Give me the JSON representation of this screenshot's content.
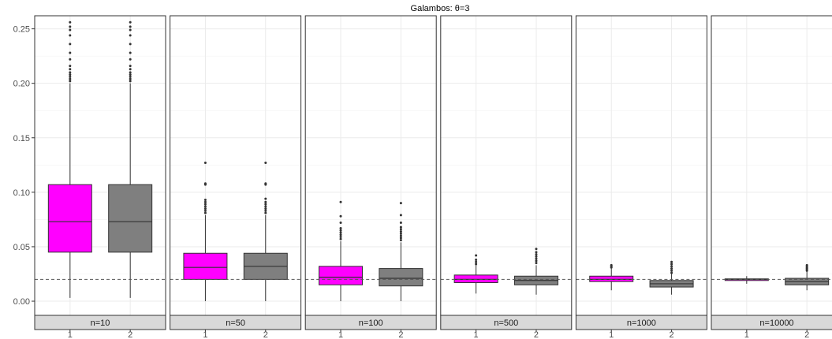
{
  "chart_data": {
    "type": "boxplot",
    "title": "Galambos: θ=3",
    "xlabel": "",
    "ylabel": "",
    "ylim": [
      -0.013,
      0.262
    ],
    "y_ticks": [
      0.0,
      0.05,
      0.1,
      0.15,
      0.2,
      0.25
    ],
    "y_tick_labels": [
      "0.00",
      "0.05",
      "0.10",
      "0.15",
      "0.20",
      "0.25"
    ],
    "categories": [
      "1",
      "2"
    ],
    "reference_line": 0.02,
    "grid": true,
    "colors": {
      "1": "#ff00ff",
      "2": "#7f7f7f"
    },
    "panels": [
      {
        "label": "n=10",
        "boxes": [
          {
            "category": "1",
            "low": 0.003,
            "q1": 0.045,
            "median": 0.073,
            "q3": 0.107,
            "high": 0.2,
            "outliers": [
              0.202,
              0.204,
              0.206,
              0.208,
              0.21,
              0.213,
              0.216,
              0.222,
              0.228,
              0.236,
              0.244,
              0.249,
              0.252,
              0.256
            ]
          },
          {
            "category": "2",
            "low": 0.003,
            "q1": 0.045,
            "median": 0.073,
            "q3": 0.107,
            "high": 0.2,
            "outliers": [
              0.202,
              0.204,
              0.206,
              0.208,
              0.21,
              0.213,
              0.216,
              0.222,
              0.228,
              0.236,
              0.244,
              0.249,
              0.252,
              0.256
            ]
          }
        ]
      },
      {
        "label": "n=50",
        "boxes": [
          {
            "category": "1",
            "low": 0.0,
            "q1": 0.02,
            "median": 0.031,
            "q3": 0.044,
            "high": 0.079,
            "outliers": [
              0.081,
              0.083,
              0.085,
              0.087,
              0.089,
              0.091,
              0.093,
              0.107,
              0.108,
              0.127
            ]
          },
          {
            "category": "2",
            "low": 0.0,
            "q1": 0.02,
            "median": 0.032,
            "q3": 0.044,
            "high": 0.079,
            "outliers": [
              0.081,
              0.083,
              0.085,
              0.087,
              0.089,
              0.091,
              0.094,
              0.107,
              0.108,
              0.127
            ]
          }
        ]
      },
      {
        "label": "n=100",
        "boxes": [
          {
            "category": "1",
            "low": 0.0,
            "q1": 0.015,
            "median": 0.022,
            "q3": 0.032,
            "high": 0.055,
            "outliers": [
              0.057,
              0.059,
              0.061,
              0.063,
              0.065,
              0.067,
              0.072,
              0.078,
              0.091
            ]
          },
          {
            "category": "2",
            "low": 0.0,
            "q1": 0.014,
            "median": 0.021,
            "q3": 0.03,
            "high": 0.054,
            "outliers": [
              0.056,
              0.058,
              0.06,
              0.062,
              0.064,
              0.066,
              0.068,
              0.072,
              0.079,
              0.09
            ]
          }
        ]
      },
      {
        "label": "n=500",
        "boxes": [
          {
            "category": "1",
            "low": 0.007,
            "q1": 0.017,
            "median": 0.02,
            "q3": 0.024,
            "high": 0.033,
            "outliers": [
              0.034,
              0.036,
              0.038,
              0.042
            ]
          },
          {
            "category": "2",
            "low": 0.006,
            "q1": 0.015,
            "median": 0.019,
            "q3": 0.023,
            "high": 0.033,
            "outliers": [
              0.035,
              0.037,
              0.039,
              0.041,
              0.043,
              0.045,
              0.048
            ]
          }
        ]
      },
      {
        "label": "n=1000",
        "boxes": [
          {
            "category": "1",
            "low": 0.01,
            "q1": 0.018,
            "median": 0.02,
            "q3": 0.023,
            "high": 0.03,
            "outliers": [
              0.031,
              0.032,
              0.033
            ]
          },
          {
            "category": "2",
            "low": 0.006,
            "q1": 0.013,
            "median": 0.016,
            "q3": 0.019,
            "high": 0.025,
            "outliers": [
              0.026,
              0.028,
              0.03,
              0.032,
              0.034,
              0.036
            ]
          }
        ]
      },
      {
        "label": "n=10000",
        "boxes": [
          {
            "category": "1",
            "low": 0.016,
            "q1": 0.019,
            "median": 0.02,
            "q3": 0.0205,
            "high": 0.023,
            "outliers": []
          },
          {
            "category": "2",
            "low": 0.01,
            "q1": 0.015,
            "median": 0.018,
            "q3": 0.021,
            "high": 0.027,
            "outliers": [
              0.028,
              0.029,
              0.03,
              0.031,
              0.032,
              0.033
            ]
          }
        ]
      }
    ]
  }
}
